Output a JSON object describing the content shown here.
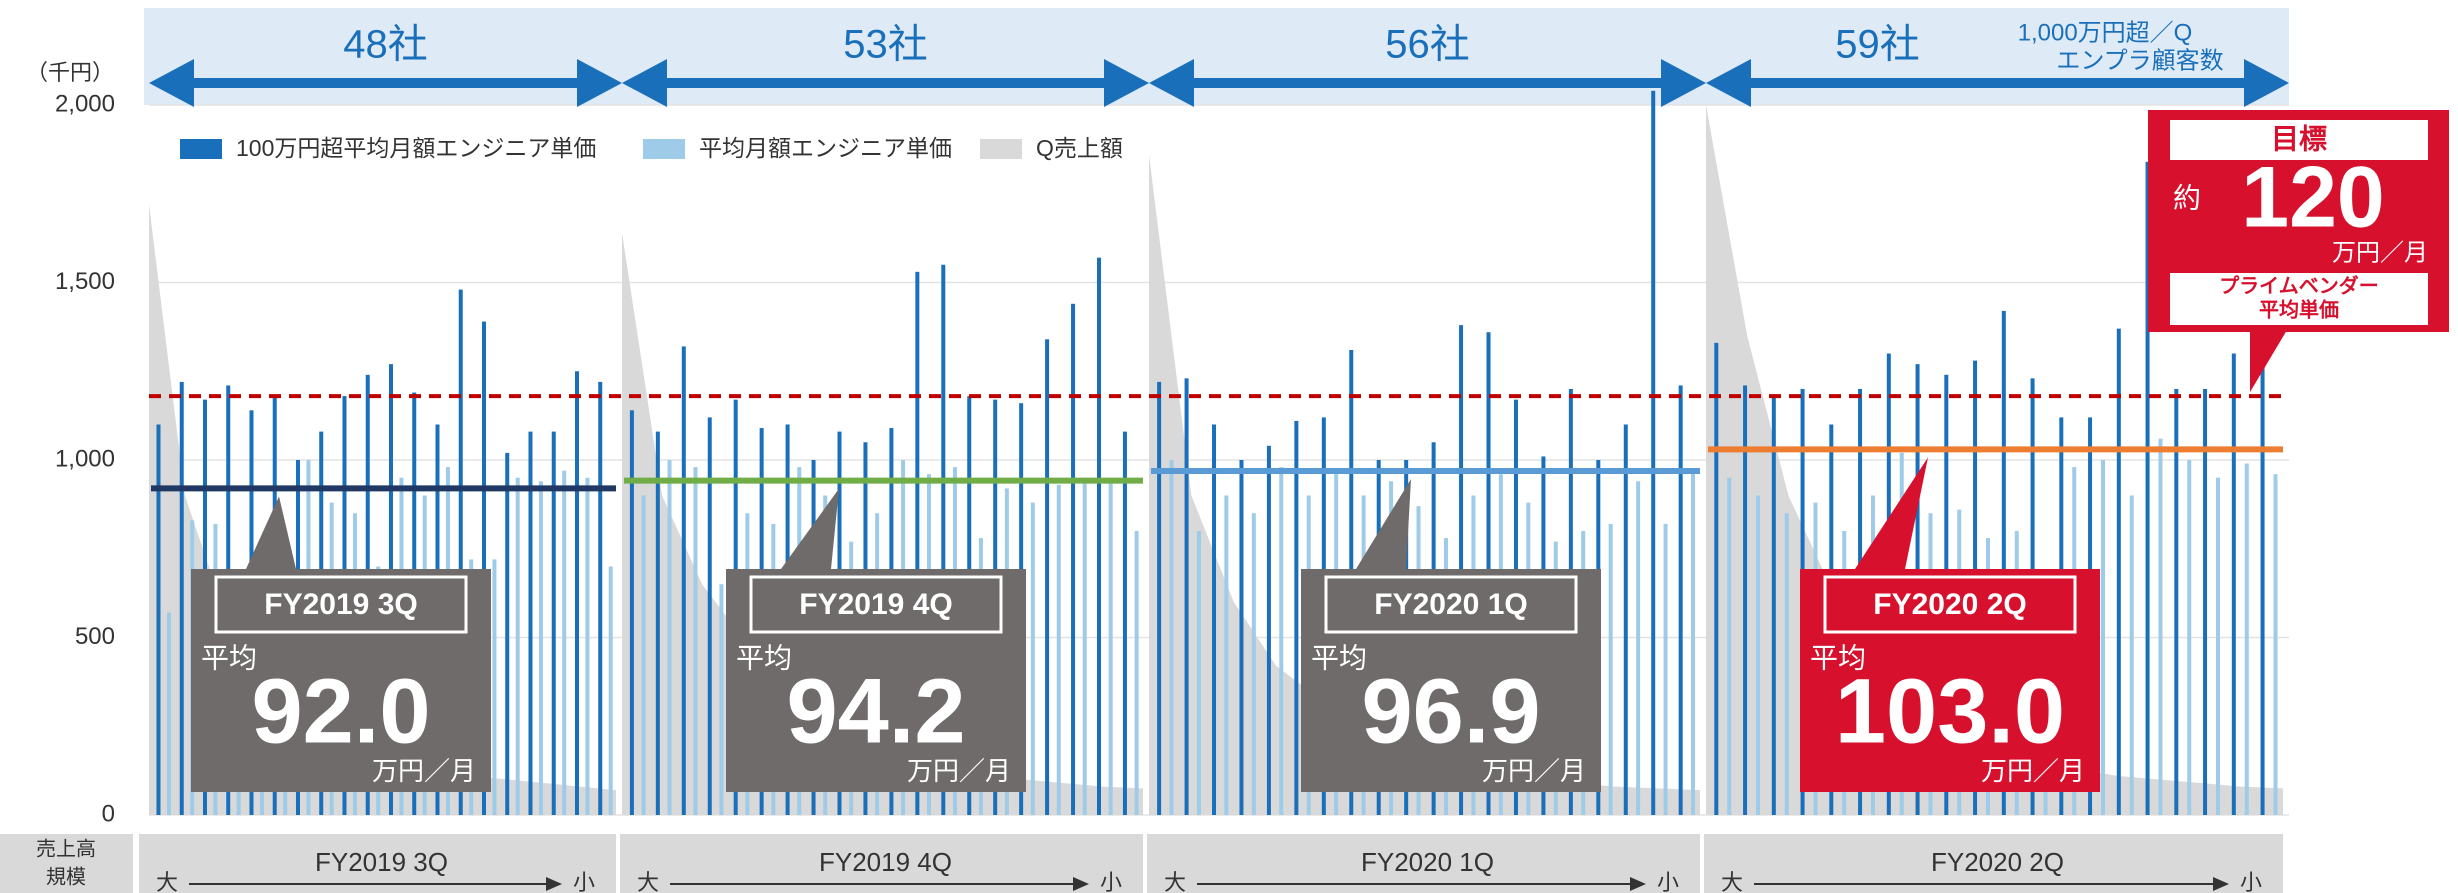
{
  "chart_data": {
    "type": "bar",
    "y_unit_label": "（千円）",
    "ylim": [
      0,
      2000
    ],
    "yticks": [
      0,
      500,
      {
        "value": 1000,
        "label": "1,000"
      },
      {
        "value": 1500,
        "label": "1,500"
      },
      {
        "value": 2000,
        "label": "2,000"
      }
    ],
    "grid": true,
    "series": [
      {
        "name": "100万円超平均月額エンジニア単価",
        "color": "#1a6fba"
      },
      {
        "name": "平均月額エンジニア単価",
        "color": "#9dcbe8"
      },
      {
        "name": "Q売上額",
        "color": "#d9d9d9"
      }
    ],
    "header_note": [
      "1,000万円超／Q",
      "エンプラ顧客数"
    ],
    "avg_prefix": "平均",
    "avg_unit": "万円／月",
    "target_line": 1180,
    "target_line_color": "#c00000",
    "target": {
      "title": "目標",
      "prefix": "約",
      "value": 120,
      "unit": "万円／月",
      "note": [
        "プライムベンダー",
        "平均単価"
      ]
    },
    "scale_label": [
      "売上高",
      "規模"
    ],
    "scale_left": "大",
    "scale_right": "小",
    "quarters": [
      {
        "name": "FY2019 3Q",
        "clients": "48社",
        "avg": 92,
        "avg_value_label": "92.0",
        "avg_line": 920,
        "avg_color": "#1f3864",
        "box_color": "#6f6b6a",
        "dark": [
          1100,
          1220,
          1170,
          1210,
          1140,
          1180,
          1000,
          1080,
          1180,
          1240,
          1270,
          1190,
          1100,
          1480,
          1390,
          1020,
          1080,
          1080,
          1250,
          1220
        ],
        "light": [
          570,
          830,
          820,
          650,
          740,
          800,
          1000,
          880,
          850,
          700,
          950,
          900,
          980,
          720,
          720,
          950,
          940,
          970,
          950,
          700
        ],
        "sales": [
          1720,
          900,
          600,
          450,
          350,
          300,
          250,
          200,
          150,
          110,
          100,
          90,
          80,
          70
        ]
      },
      {
        "name": "FY2019 4Q",
        "clients": "53社",
        "avg": 94.2,
        "avg_line": 942,
        "avg_color": "#70ad47",
        "box_color": "#6f6b6a",
        "dark": [
          1140,
          1080,
          1320,
          1120,
          1170,
          1090,
          1100,
          1000,
          1080,
          1050,
          1090,
          1530,
          1550,
          1180,
          1170,
          1160,
          1340,
          1440,
          1570,
          1080
        ],
        "light": [
          900,
          1000,
          980,
          650,
          850,
          820,
          980,
          900,
          770,
          850,
          1000,
          960,
          980,
          780,
          920,
          880,
          930,
          950,
          940,
          800
        ],
        "sales": [
          1640,
          900,
          650,
          500,
          420,
          330,
          260,
          200,
          150,
          120,
          100,
          90,
          80,
          75
        ]
      },
      {
        "name": "FY2020 1Q",
        "clients": "56社",
        "avg": 96.9,
        "avg_line": 969,
        "avg_color": "#5b9bd5",
        "box_color": "#6f6b6a",
        "dark": [
          1220,
          1230,
          1100,
          1000,
          1040,
          1110,
          1120,
          1310,
          1000,
          1000,
          1050,
          1380,
          1360,
          1170,
          1010,
          1200,
          1000,
          1100,
          2040,
          1210
        ],
        "light": [
          1000,
          800,
          900,
          850,
          980,
          900,
          960,
          900,
          940,
          870,
          780,
          900,
          960,
          880,
          770,
          800,
          820,
          940,
          820,
          970
        ],
        "sales": [
          1860,
          900,
          600,
          420,
          330,
          270,
          200,
          160,
          120,
          100,
          90,
          80,
          75,
          70
        ]
      },
      {
        "name": "FY2020 2Q",
        "clients": "59社",
        "avg": 103,
        "avg_value_label": "103.0",
        "avg_line": 1030,
        "avg_color": "#ed7d31",
        "box_color": "#d7102d",
        "dark": [
          1330,
          1210,
          1180,
          1200,
          1100,
          1200,
          1300,
          1270,
          1240,
          1280,
          1420,
          1230,
          1120,
          1120,
          1370,
          1840,
          1200,
          1200,
          1300,
          1330
        ],
        "light": [
          950,
          900,
          850,
          880,
          800,
          900,
          1020,
          850,
          860,
          780,
          800,
          640,
          980,
          1000,
          900,
          1060,
          1000,
          950,
          990,
          960
        ],
        "sales": [
          2000,
          1350,
          900,
          650,
          480,
          380,
          300,
          220,
          170,
          130,
          110,
          100,
          90,
          80,
          75
        ]
      }
    ]
  }
}
